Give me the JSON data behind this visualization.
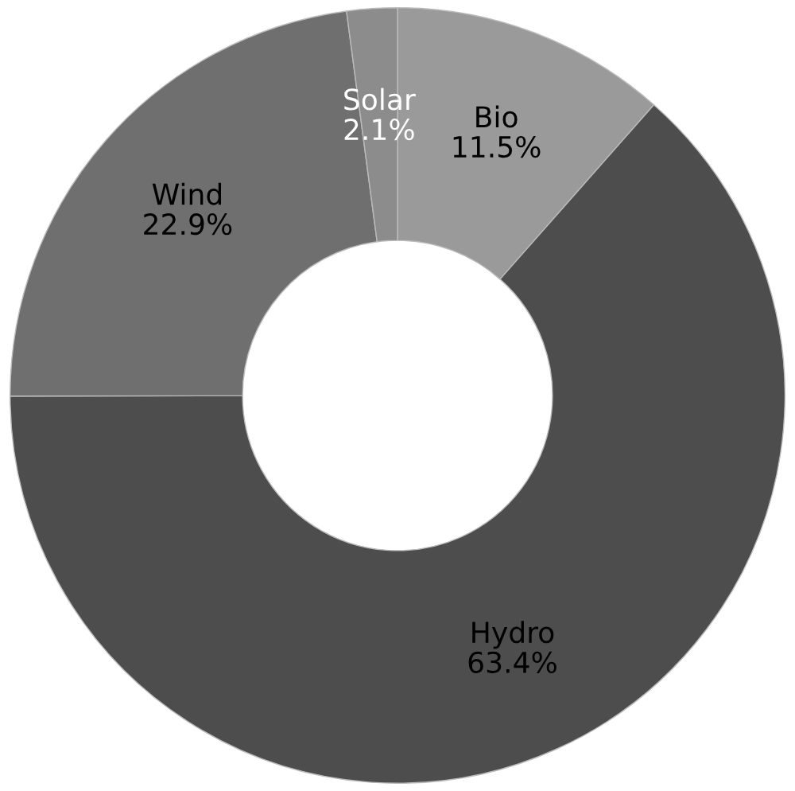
{
  "chart_data": {
    "type": "donut",
    "categories": [
      "Bio",
      "Hydro",
      "Wind",
      "Solar"
    ],
    "values": [
      11.5,
      63.4,
      22.9,
      2.1
    ],
    "colors": [
      "#9a9a9a",
      "#4d4d4d",
      "#6f6f6f",
      "#8c8c8c"
    ],
    "value_labels": [
      "11.5%",
      "63.4%",
      "22.9%",
      "2.1%"
    ],
    "legend": false
  }
}
